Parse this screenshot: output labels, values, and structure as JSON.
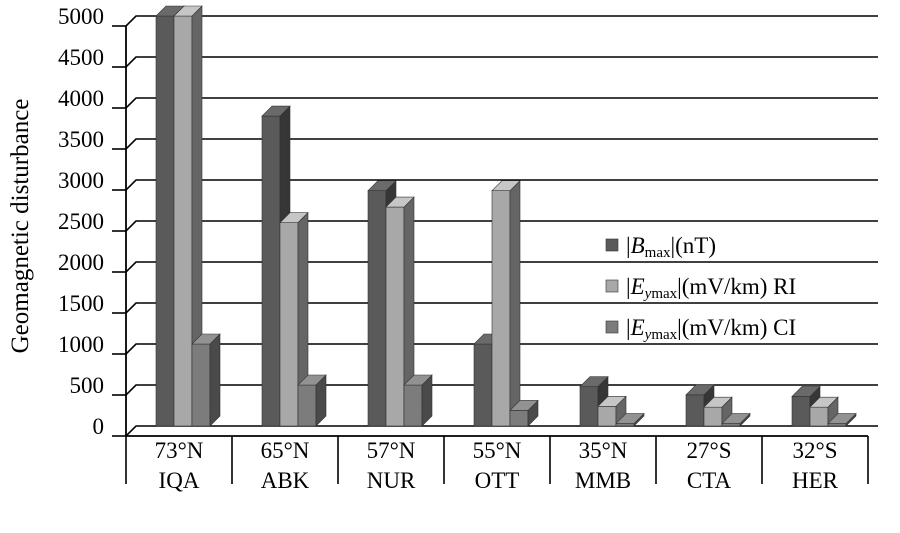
{
  "chart_data": {
    "type": "bar",
    "style": "3d-clustered-column",
    "ylabel": "Geomagnetic disturbance",
    "xlabel": "",
    "ylim": [
      0,
      5000
    ],
    "yticks": [
      0,
      500,
      1000,
      1500,
      2000,
      2500,
      3000,
      3500,
      4000,
      4500,
      5000
    ],
    "grid": true,
    "legend_position": "right",
    "categories": [
      {
        "lat": "73°N",
        "code": "IQA"
      },
      {
        "lat": "65°N",
        "code": "ABK"
      },
      {
        "lat": "57°N",
        "code": "NUR"
      },
      {
        "lat": "55°N",
        "code": "OTT"
      },
      {
        "lat": "35°N",
        "code": "MMB"
      },
      {
        "lat": "27°S",
        "code": "CTA"
      },
      {
        "lat": "32°S",
        "code": "HER"
      }
    ],
    "series": [
      {
        "name": "|Bmax|(nT)",
        "label_parts": [
          "|",
          "B",
          "max",
          "|(nT)"
        ],
        "color": "#5a5a5a",
        "values": [
          5000,
          3780,
          2870,
          1000,
          480,
          380,
          360
        ]
      },
      {
        "name": "|Eymax|(mV/km) RI",
        "label_parts": [
          "|",
          "E",
          "ymax",
          "|(mV/km) RI"
        ],
        "color": "#a8a8a8",
        "values": [
          5000,
          2480,
          2670,
          2870,
          240,
          230,
          230
        ]
      },
      {
        "name": "|Eymax|(mV/km) CI",
        "label_parts": [
          "|",
          "E",
          "ymax",
          "|(mV/km) CI"
        ],
        "color": "#7c7c7c",
        "values": [
          1000,
          500,
          500,
          190,
          30,
          30,
          30
        ]
      }
    ]
  }
}
